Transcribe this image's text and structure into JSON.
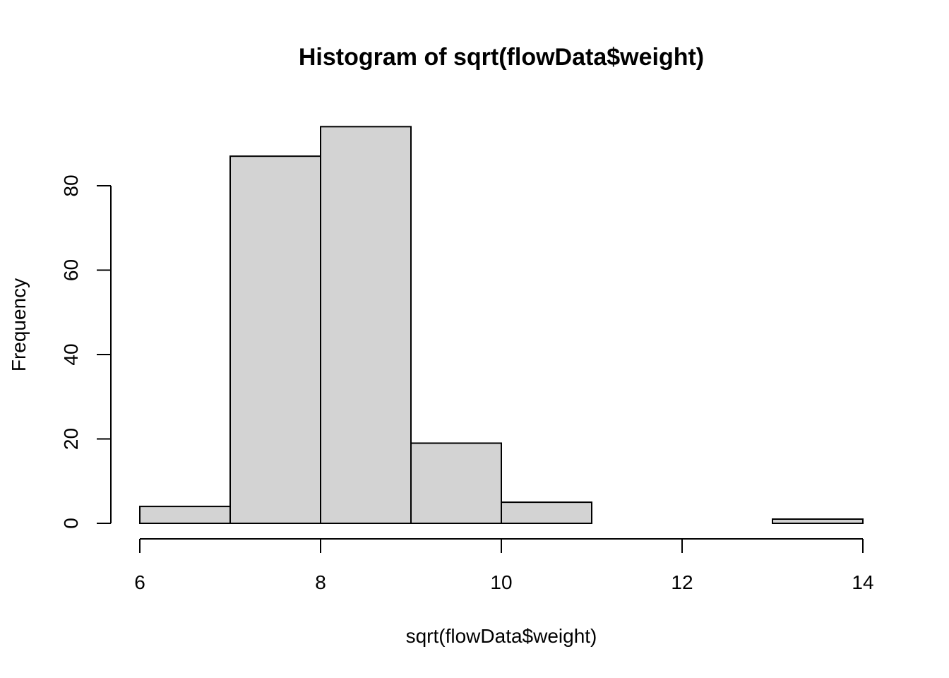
{
  "chart_data": {
    "type": "bar",
    "title": "Histogram of sqrt(flowData$weight)",
    "xlabel": "sqrt(flowData$weight)",
    "ylabel": "Frequency",
    "bins": [
      {
        "start": 6,
        "end": 7,
        "count": 4
      },
      {
        "start": 7,
        "end": 8,
        "count": 87
      },
      {
        "start": 8,
        "end": 9,
        "count": 94
      },
      {
        "start": 9,
        "end": 10,
        "count": 19
      },
      {
        "start": 10,
        "end": 11,
        "count": 5
      },
      {
        "start": 11,
        "end": 12,
        "count": 0
      },
      {
        "start": 12,
        "end": 13,
        "count": 0
      },
      {
        "start": 13,
        "end": 14,
        "count": 1
      }
    ],
    "xlim": [
      6,
      14
    ],
    "ylim": [
      0,
      94
    ],
    "x_ticks": [
      6,
      8,
      10,
      12,
      14
    ],
    "x_tick_labels": [
      "6",
      "8",
      "10",
      "12",
      "14"
    ],
    "y_ticks": [
      0,
      20,
      40,
      60,
      80
    ],
    "y_tick_labels": [
      "0",
      "20",
      "40",
      "60",
      "80"
    ],
    "grid": false,
    "bar_color": "#d3d3d3",
    "edge_color": "#000000"
  }
}
